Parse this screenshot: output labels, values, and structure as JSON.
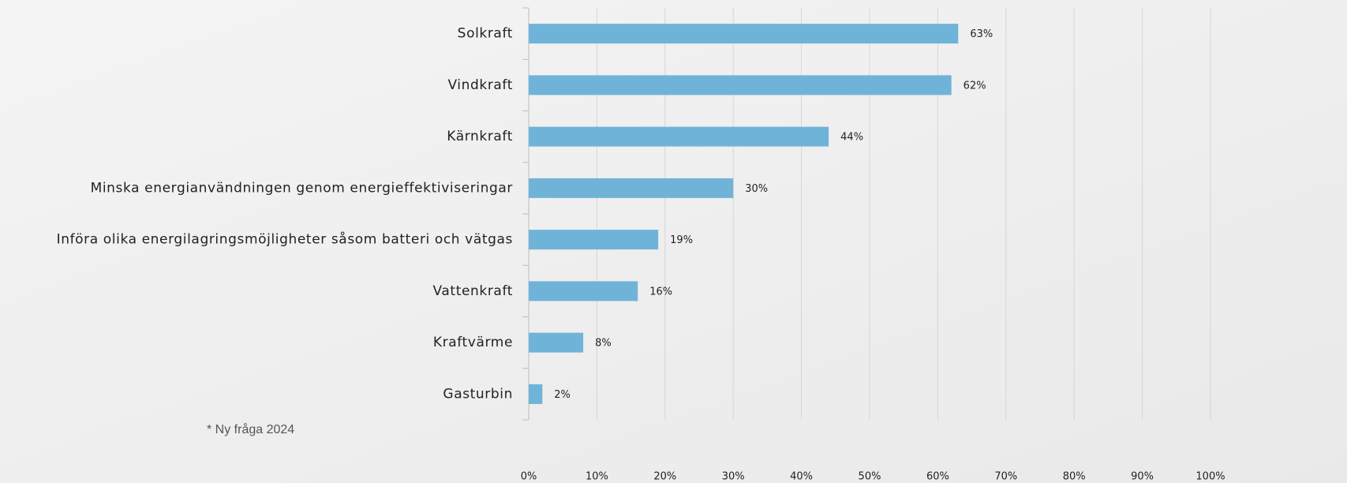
{
  "chart_data": {
    "type": "bar",
    "orientation": "horizontal",
    "categories": [
      "Solkraft",
      "Vindkraft",
      "Kärnkraft",
      "Minska energianvändningen genom energieffektiviseringar",
      "Införa olika energilagringsmöjligheter såsom batteri och vätgas",
      "Vattenkraft",
      "Kraftvärme",
      "Gasturbin"
    ],
    "values": [
      63,
      62,
      44,
      30,
      19,
      16,
      8,
      2
    ],
    "value_labels": [
      "63%",
      "62%",
      "44%",
      "30%",
      "19%",
      "16%",
      "8%",
      "2%"
    ],
    "color": "#70b3d9",
    "xlim": [
      0,
      100
    ],
    "xticks": [
      {
        "value": 0,
        "label": "0%"
      },
      {
        "value": 10,
        "label": "10%"
      },
      {
        "value": 20,
        "label": "20%"
      },
      {
        "value": 30,
        "label": "30%"
      },
      {
        "value": 40,
        "label": "40%"
      },
      {
        "value": 50,
        "label": "50%"
      },
      {
        "value": 60,
        "label": "60%"
      },
      {
        "value": 70,
        "label": "70%"
      },
      {
        "value": 80,
        "label": "80%"
      },
      {
        "value": 90,
        "label": "90%"
      },
      {
        "value": 100,
        "label": "100%"
      }
    ],
    "grid": true,
    "annotation": "* Ny fråga 2024"
  }
}
